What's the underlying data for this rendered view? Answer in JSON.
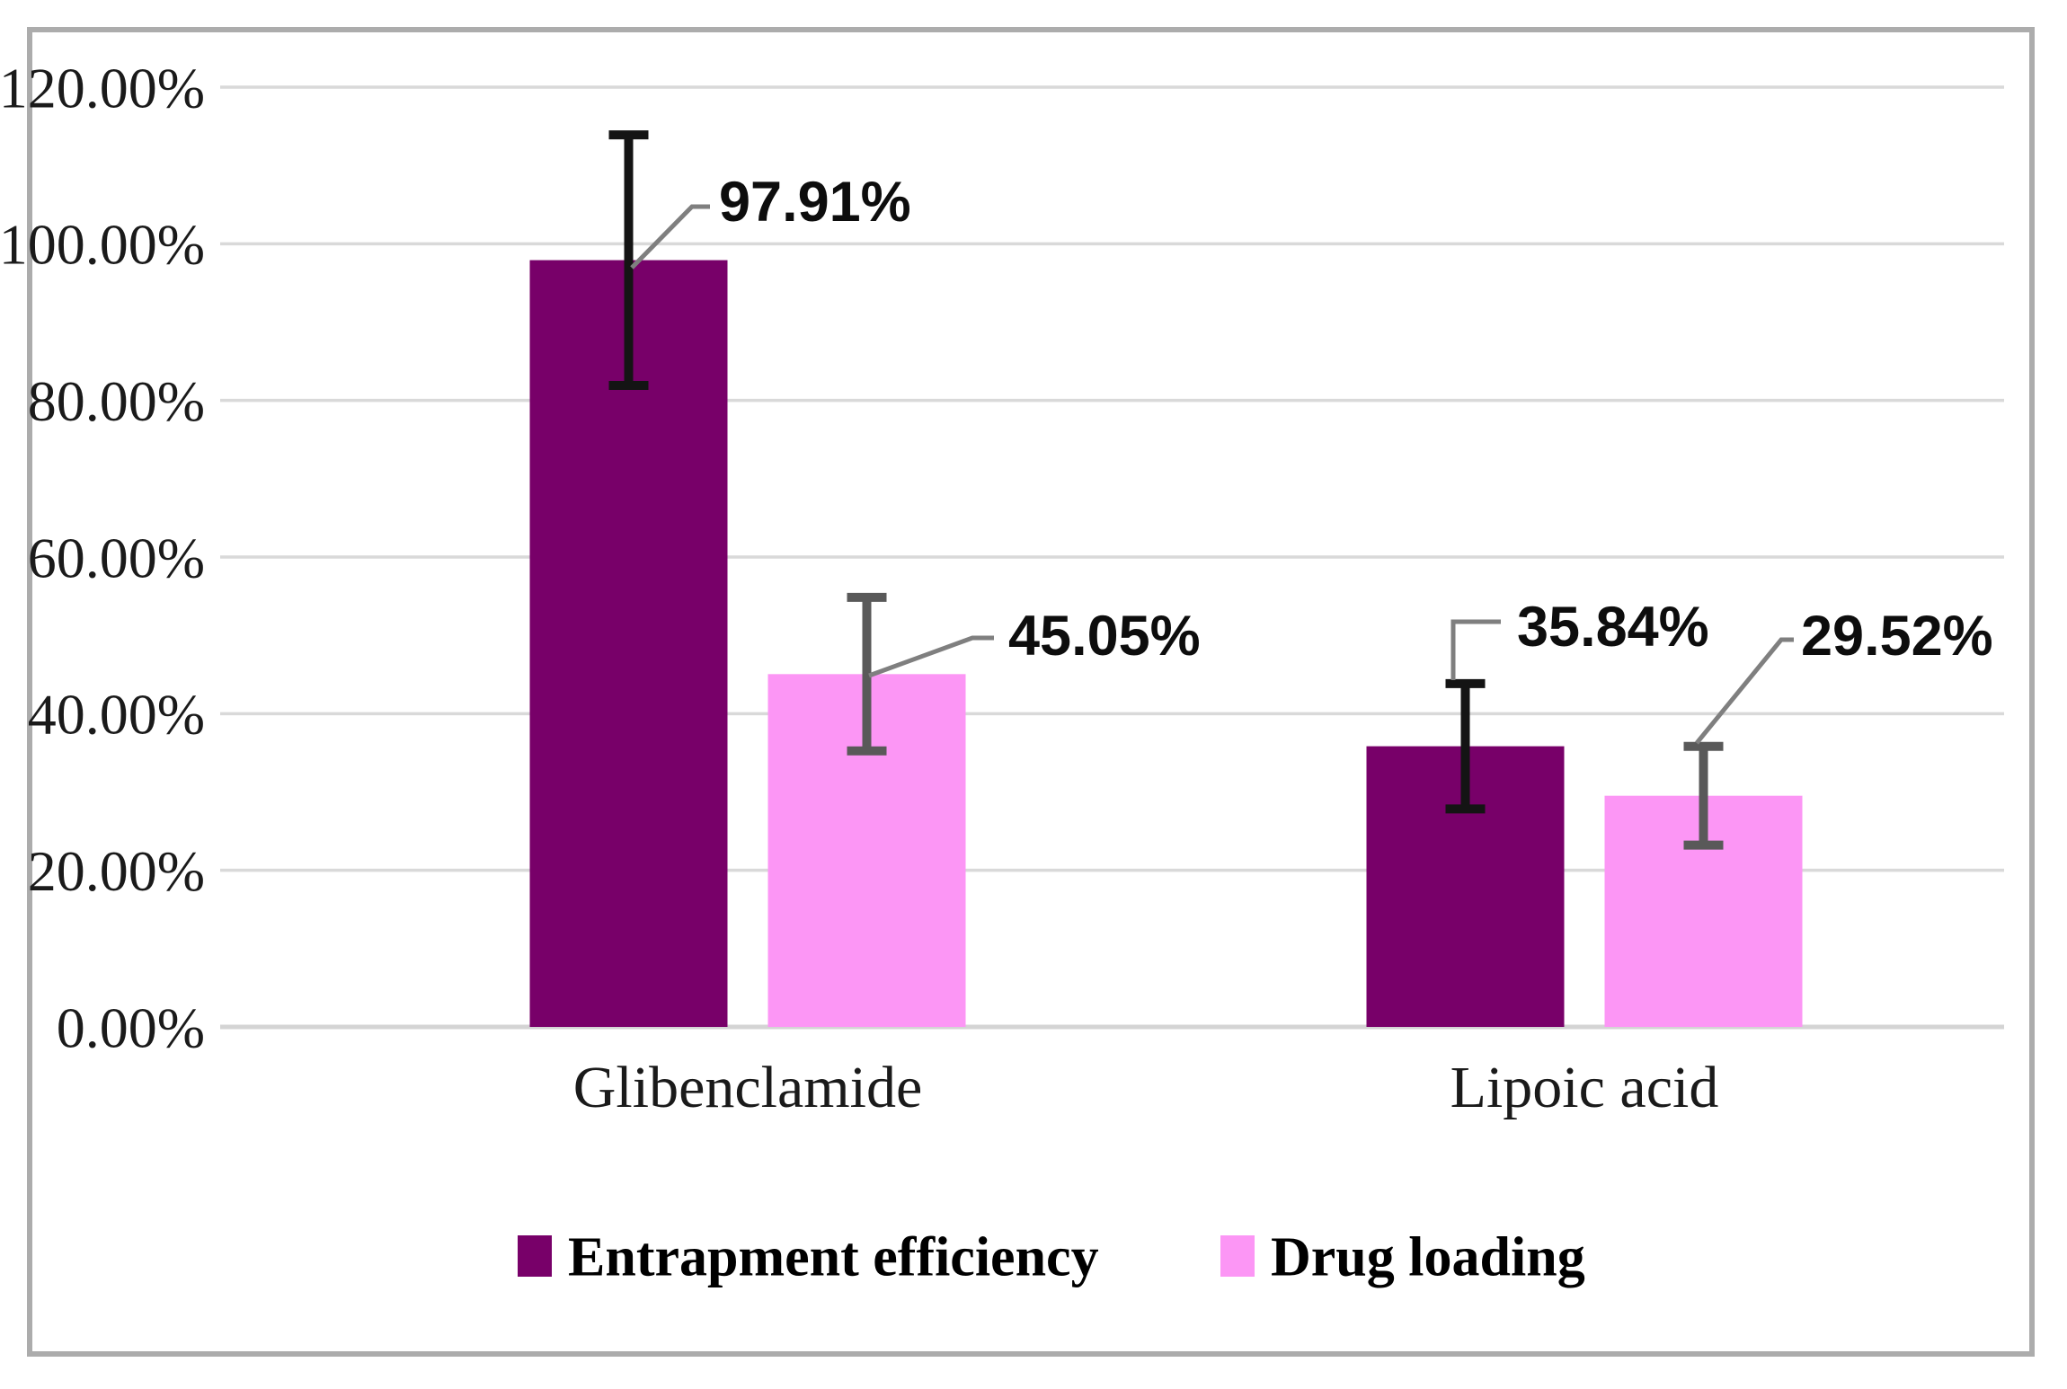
{
  "chart_data": {
    "type": "bar",
    "title": "",
    "xlabel": "",
    "ylabel": "",
    "categories": [
      "Glibenclamide",
      "Lipoic acid"
    ],
    "series": [
      {
        "name": "Entrapment efficiency",
        "color": "#780069",
        "error_color": "#141414",
        "values": [
          97.91,
          35.84
        ],
        "errors": [
          16.0,
          8.0
        ],
        "data_labels": [
          "97.91%",
          "35.84%"
        ]
      },
      {
        "name": "Drug loading",
        "color": "#FC96F5",
        "error_color": "#595959",
        "values": [
          45.05,
          29.52
        ],
        "errors": [
          9.8,
          6.3
        ],
        "data_labels": [
          "45.05%",
          "29.52%"
        ]
      }
    ],
    "ylim": [
      0,
      120
    ],
    "ytick_step": 20,
    "ytick_labels": [
      "0.00%",
      "20.00%",
      "40.00%",
      "60.00%",
      "80.00%",
      "100.00%",
      "120.00%"
    ],
    "grid": true,
    "legend_position": "bottom",
    "legend_labels": [
      "Entrapment efficiency",
      "Drug loading"
    ],
    "colors": {
      "gridline": "#D9D9D9",
      "axis_line": "#D4D4D4",
      "leader_line": "#7F7F7F",
      "text": "#1A1A1A",
      "data_label_text": "#0D0D0D",
      "frame_border": "#ACACAC"
    }
  }
}
